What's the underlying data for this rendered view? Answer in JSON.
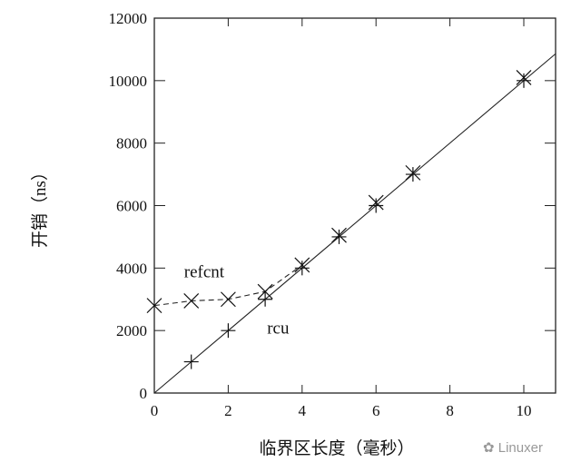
{
  "chart_data": {
    "type": "line",
    "title": "",
    "xlabel": "临界区长度（毫秒）",
    "ylabel": "开销（ns）",
    "xlim": [
      0,
      10.86
    ],
    "ylim": [
      0,
      12000
    ],
    "xticks": [
      0,
      2,
      4,
      6,
      8,
      10
    ],
    "yticks": [
      0,
      2000,
      4000,
      6000,
      8000,
      10000,
      12000
    ],
    "grid": false,
    "series": [
      {
        "name": "refcnt",
        "marker": "x",
        "line": "dashed",
        "x": [
          0,
          1,
          2,
          3,
          4,
          5,
          6,
          7,
          10
        ],
        "y": [
          2800,
          2950,
          3000,
          3250,
          4100,
          5050,
          6100,
          7050,
          10100
        ],
        "line_x": [
          0,
          1,
          2,
          3,
          3.9
        ]
      },
      {
        "name": "rcu",
        "marker": "+",
        "line": "solid",
        "x": [
          1,
          2,
          3,
          4,
          5,
          6,
          7,
          10
        ],
        "y": [
          1000,
          2000,
          3000,
          4000,
          5000,
          6000,
          7000,
          10000
        ],
        "line_x": [
          0,
          10.86
        ]
      }
    ],
    "annotations": [
      {
        "text": "refcnt",
        "x": 1.35,
        "y": 3700
      },
      {
        "text": "rcu",
        "x": 3.35,
        "y": 1900
      }
    ]
  },
  "watermark": "Linuxer"
}
